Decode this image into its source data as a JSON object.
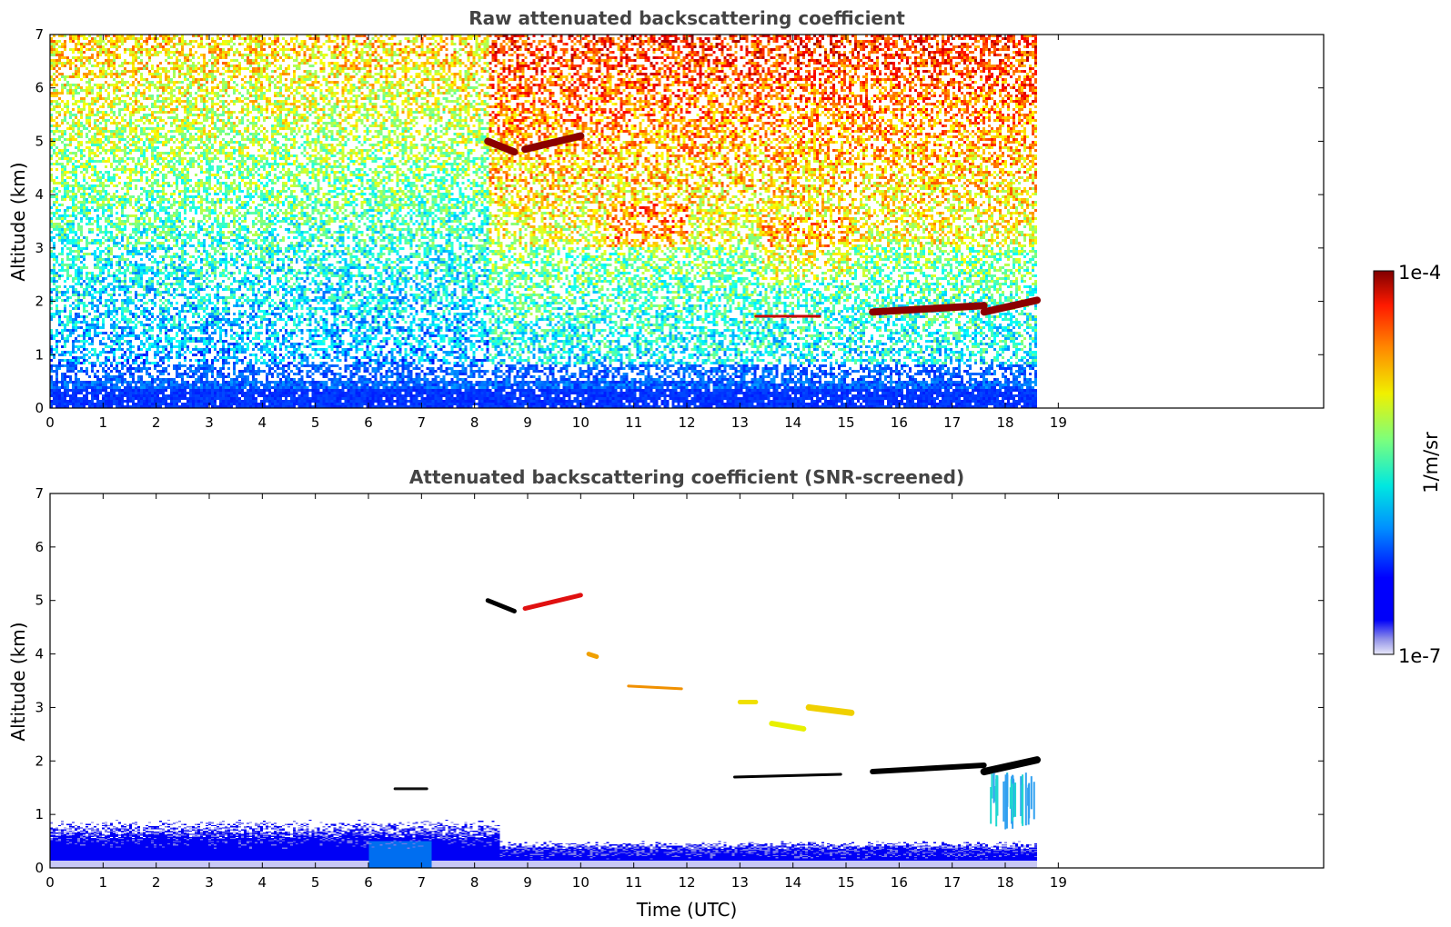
{
  "chart_data": [
    {
      "type": "heatmap",
      "title": "Raw attenuated backscattering coefficient",
      "xlabel": "",
      "ylabel": "Altitude (km)",
      "xlim": [
        0,
        24
      ],
      "ylim": [
        0,
        7
      ],
      "xticks": [
        0,
        1,
        2,
        3,
        4,
        5,
        6,
        7,
        8,
        9,
        10,
        11,
        12,
        13,
        14,
        15,
        16,
        17,
        18,
        19
      ],
      "yticks": [
        0,
        1,
        2,
        3,
        4,
        5,
        6,
        7
      ],
      "data_end_time": 18.6,
      "layers": [
        {
          "t_start": 8.25,
          "t_end": 8.75,
          "alt_start": 5.0,
          "alt_end": 4.8,
          "level": "max"
        },
        {
          "t_start": 8.95,
          "t_end": 10.0,
          "alt_start": 4.85,
          "alt_end": 5.1,
          "level": "max"
        },
        {
          "t_start": 13.3,
          "t_end": 14.5,
          "alt_start": 1.72,
          "alt_end": 1.72,
          "level": "high"
        },
        {
          "t_start": 15.5,
          "t_end": 17.6,
          "alt_start": 1.8,
          "alt_end": 1.92,
          "level": "max"
        },
        {
          "t_start": 17.6,
          "t_end": 18.6,
          "alt_start": 1.8,
          "alt_end": 2.02,
          "level": "max"
        }
      ]
    },
    {
      "type": "heatmap",
      "title": "Attenuated backscattering coefficient (SNR-screened)",
      "xlabel": "Time (UTC)",
      "ylabel": "Altitude (km)",
      "xlim": [
        0,
        24
      ],
      "ylim": [
        0,
        7
      ],
      "xticks": [
        0,
        1,
        2,
        3,
        4,
        5,
        6,
        7,
        8,
        9,
        10,
        11,
        12,
        13,
        14,
        15,
        16,
        17,
        18,
        19
      ],
      "yticks": [
        0,
        1,
        2,
        3,
        4,
        5,
        6,
        7
      ],
      "data_end_time": 18.6
    }
  ],
  "colorbar": {
    "label": "1/m/sr",
    "max_label": "1e-4",
    "min_label": "1e-7",
    "colormap": "jet",
    "low_colors": [
      "#e8e8f8",
      "#b8b8ee",
      "#8888e4",
      "#5050e8"
    ]
  }
}
